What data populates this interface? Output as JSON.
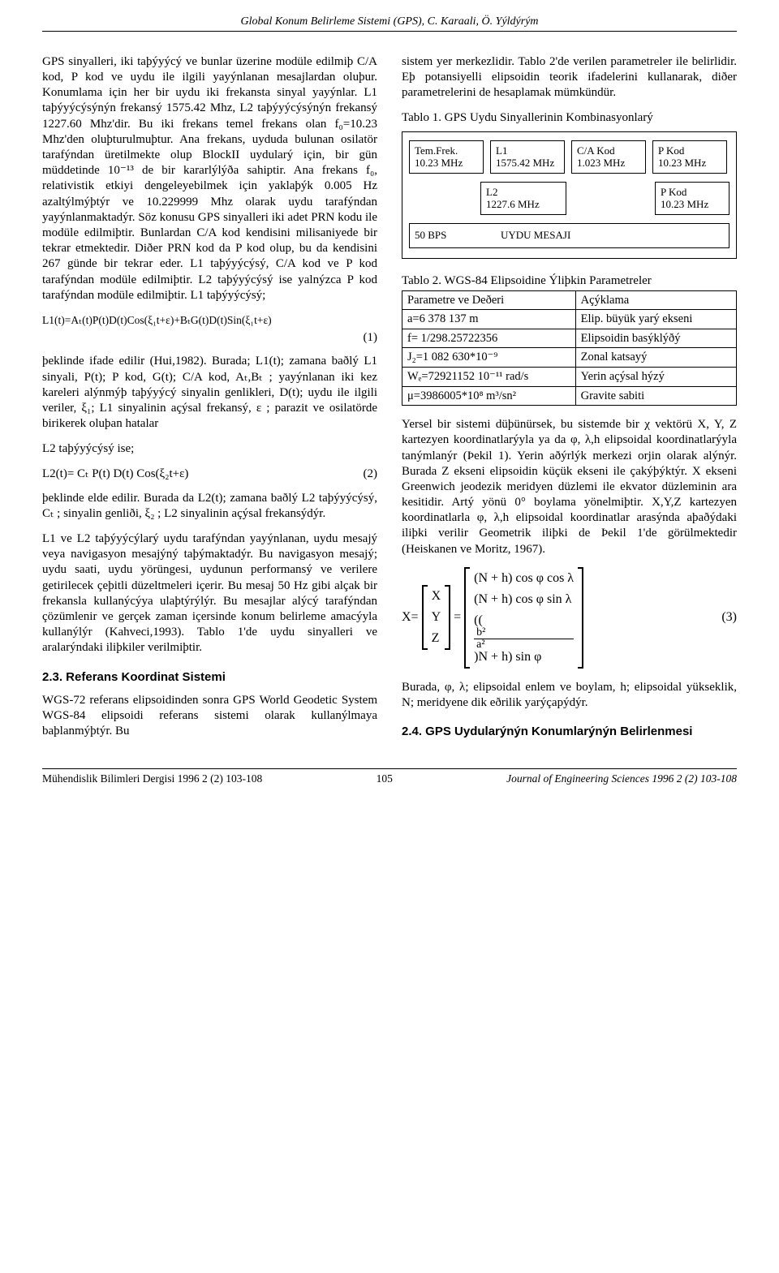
{
  "running_head": "Global Konum Belirleme Sistemi (GPS), C. Karaali, Ö. Yýldýrým",
  "left": {
    "p1": "GPS sinyalleri, iki taþýyýcý ve bunlar üzerine modüle edilmiþ C/A kod, P kod ve uydu ile ilgili yayýnlanan mesajlardan oluþur. Konumlama için her bir uydu iki frekansta sinyal yayýnlar. L1 taþýyýcýsýnýn frekansý 1575.42 Mhz, L2 taþýyýcýsýnýn frekansý 1227.60 Mhz'dir. Bu iki frekans temel frekans olan f₀=10.23 Mhz'den oluþturulmuþtur. Ana frekans, uyduda bulunan osilatör tarafýndan üretilmekte olup BlockII uydularý için, bir gün müddetinde 10⁻¹³ de bir kararlýlýða sahiptir. Ana frekans f₀, relativistik etkiyi dengeleyebilmek için yaklaþýk 0.005 Hz azaltýlmýþtýr ve 10.229999 Mhz olarak uydu tarafýndan yayýnlanmaktadýr. Söz konusu GPS sinyalleri iki adet PRN kodu ile modüle edilmiþtir. Bunlardan C/A kod kendisini milisaniyede bir tekrar etmektedir. Diðer PRN kod da P kod olup, bu da kendisini 267 günde bir tekrar eder. L1 taþýyýcýsý, C/A kod ve P kod tarafýndan modüle edilmiþtir. L2 taþýyýcýsý ise yalnýzca P kod tarafýndan modüle edilmiþtir. L1 taþýyýcýsý;",
    "eq1_body": "L1(t)=Aₜ(t)P(t)D(t)Cos(ξ₁t+ε)+BₜG(t)D(t)Sin(ξ₁t+ε)",
    "eq1_num": "(1)",
    "p2": "þeklinde ifade edilir (Hui,1982). Burada; L1(t); zamana baðlý L1 sinyali, P(t); P kod, G(t); C/A kod, Aₜ,Bₜ ; yayýnlanan iki kez kareleri alýnmýþ taþýyýcý sinyalin genlikleri, D(t); uydu ile ilgili veriler, ξ₁; L1 sinyalinin açýsal frekansý, ε ; parazit ve osilatörde birikerek oluþan hatalar",
    "p3": "L2 taþýyýcýsý ise;",
    "eq2_body": "L2(t)= Cₜ P(t) D(t) Cos(ξ₂t+ε)",
    "eq2_num": "(2)",
    "p4": "þeklinde elde edilir. Burada da L2(t); zamana baðlý L2 taþýyýcýsý, Cₜ ; sinyalin genliði, ξ₂ ; L2 sinyalinin açýsal frekansýdýr.",
    "p5": "L1 ve L2 taþýyýcýlarý uydu tarafýndan yayýnlanan, uydu mesajý veya navigasyon mesajýný taþýmaktadýr. Bu navigasyon mesajý; uydu saati, uydu yörüngesi, uydunun performansý ve verilere getirilecek çeþitli düzeltmeleri içerir. Bu mesaj 50 Hz gibi alçak bir frekansla kullanýcýya ulaþtýrýlýr. Bu mesajlar alýcý tarafýndan çözümlenir ve gerçek zaman içersinde konum belirleme amacýyla kullanýlýr (Kahveci,1993). Tablo 1'de uydu sinyalleri ve aralarýndaki iliþkiler verilmiþtir.",
    "sec23": "2.3. Referans Koordinat Sistemi",
    "p6": "WGS-72 referans elipsoidinden sonra GPS World Geodetic System WGS-84 elipsoidi referans sistemi olarak kullanýlmaya baþlanmýþtýr. Bu"
  },
  "right": {
    "p1": "sistem yer merkezlidir. Tablo 2'de verilen parametreler ile belirlidir. Eþ potansiyelli elipsoidin teorik ifadelerini kullanarak, diðer parametrelerini de hesaplamak mümkündür.",
    "t1_caption": "Tablo 1. GPS Uydu Sinyallerinin Kombinasyonlarý",
    "diagram": {
      "tem_label": "Tem.Frek.",
      "tem_val": "10.23 MHz",
      "l1_label": "L1",
      "l1_val": "1575.42 MHz",
      "ca_label": "C/A Kod",
      "ca_val": "1.023 MHz",
      "p1_label": "P Kod",
      "p1_val": "10.23 MHz",
      "l2_label": "L2",
      "l2_val": "1227.6 MHz",
      "p2_label": "P Kod",
      "p2_val": "10.23 MHz",
      "bps": "50 BPS",
      "msg": "UYDU MESAJI"
    },
    "t2_caption": "Tablo 2. WGS-84 Elipsoidine Ýliþkin Parametreler",
    "t2": {
      "h1": "Parametre ve Deðeri",
      "h2": "Açýklama",
      "r1c1": "a=6 378 137 m",
      "r1c2": "Elip. büyük yarý ekseni",
      "r2c1": "f= 1/298.25722356",
      "r2c2": "Elipsoidin basýklýðý",
      "r3c1": "J₂=1 082 630*10⁻⁹",
      "r3c2": "Zonal katsayý",
      "r4c1": "Wₑ=72921152 10⁻¹¹ rad/s",
      "r4c2": "Yerin açýsal hýzý",
      "r5c1": "μ=3986005*10⁸ m³/sn²",
      "r5c2": "Gravite sabiti"
    },
    "p2": "Yersel bir sistemi düþünürsek, bu sistemde bir χ vektörü X, Y, Z kartezyen koordinatlarýyla ya da φ, λ,h elipsoidal koordinatlarýyla tanýmlanýr (Þekil 1). Yerin aðýrlýk merkezi orjin olarak alýnýr. Burada Z ekseni elipsoidin küçük ekseni ile çakýþýktýr. X ekseni Greenwich jeodezik meridyen düzlemi ile ekvator düzleminin ara kesitidir. Artý yönü 0° boylama yönelmiþtir. X,Y,Z kartezyen koordinatlarla φ, λ,h elipsoidal koordinatlar arasýnda aþaðýdaki iliþki verilir Geometrik iliþki de Þekil 1'de görülmektedir (Heiskanen ve Moritz, 1967).",
    "matrix": {
      "lhs": "X=",
      "x": "X",
      "y": "Y",
      "z": "Z",
      "r1": "(N + h) cos φ cos λ",
      "r2": "(N + h) cos φ sin λ",
      "r3a": "((",
      "r3_num": "b²",
      "r3_den": "a²",
      "r3b": ")N + h) sin φ",
      "eqnum": "(3)"
    },
    "p3": "Burada, φ, λ; elipsoidal enlem ve boylam, h; elipsoidal yükseklik, N; meridyene dik eðrilik yarýçapýdýr.",
    "sec24": "2.4. GPS Uydularýnýn Konumlarýnýn Belirlenmesi"
  },
  "footer": {
    "left": "Mühendislik Bilimleri Dergisi  1996  2 (2)  103-108",
    "page": "105",
    "right": "Journal of Engineering Sciences 1996  2 (2)  103-108"
  }
}
